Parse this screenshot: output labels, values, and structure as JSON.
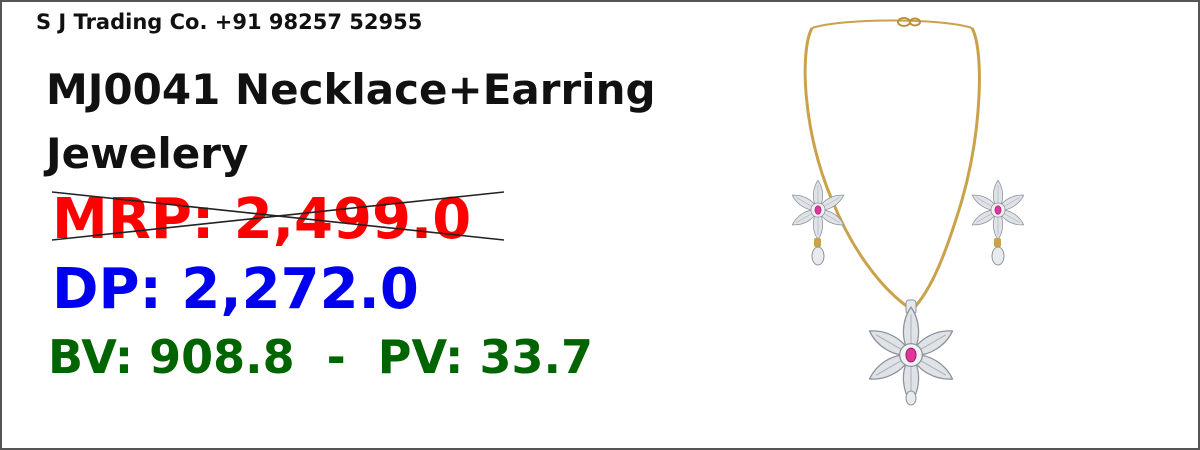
{
  "seller": "S J Trading Co. +91 98257 52955",
  "product": {
    "title": "MJ0041 Necklace+Earring Jewelery",
    "image_alt": "necklace-and-earring-set"
  },
  "pricing": {
    "mrp": "MRP: 2,499.0",
    "dp": "DP: 2,272.0",
    "bv_pv": "BV: 908.8  -  PV: 33.7"
  },
  "colors": {
    "mrp": "#ff0000",
    "dp": "#0000ee",
    "bv_pv": "#006400",
    "gold": "#c9a24a",
    "stone": "#d8dde3",
    "ruby": "#e0359a"
  }
}
